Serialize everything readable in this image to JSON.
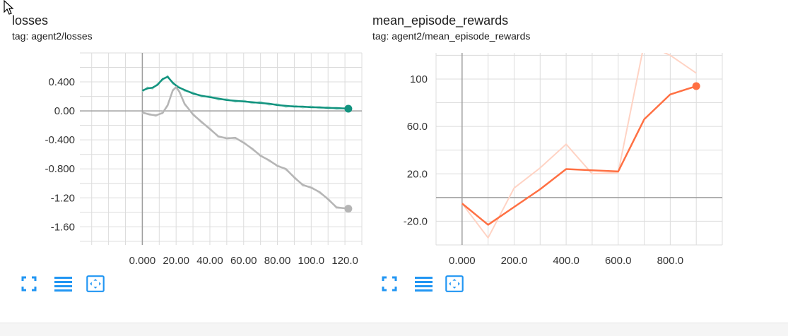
{
  "accent": "#2196f3",
  "charts": [
    {
      "title": "losses",
      "tag": "tag: agent2/losses"
    },
    {
      "title": "mean_episode_rewards",
      "tag": "tag: agent2/mean_episode_rewards"
    }
  ],
  "chart_data": [
    {
      "type": "line",
      "title": "losses",
      "subtitle": "tag: agent2/losses",
      "xlim": [
        -37,
        130
      ],
      "ylim": [
        -1.85,
        0.8
      ],
      "x_ticks": [
        0,
        20,
        40,
        60,
        80,
        100,
        120
      ],
      "x_tick_labels": [
        "0.000",
        "20.00",
        "40.00",
        "60.00",
        "80.00",
        "100.0",
        "120.0"
      ],
      "y_ticks": [
        0.4,
        0,
        -0.4,
        -0.8,
        -1.2,
        -1.6
      ],
      "y_tick_labels": [
        "0.400",
        "0.00",
        "-0.400",
        "-0.800",
        "-1.20",
        "-1.60"
      ],
      "grid": true,
      "series": [
        {
          "color": "#12937f",
          "raw_color": "#a7dccf",
          "x": [
            0,
            3,
            6,
            9,
            12,
            15,
            18,
            21,
            25,
            30,
            35,
            40,
            45,
            50,
            55,
            60,
            65,
            70,
            75,
            80,
            85,
            90,
            95,
            100,
            105,
            110,
            115,
            122
          ],
          "values": [
            0.28,
            0.31,
            0.32,
            0.36,
            0.44,
            0.47,
            0.39,
            0.33,
            0.29,
            0.24,
            0.21,
            0.19,
            0.17,
            0.15,
            0.14,
            0.13,
            0.12,
            0.11,
            0.1,
            0.08,
            0.07,
            0.06,
            0.06,
            0.05,
            0.05,
            0.04,
            0.04,
            0.03
          ]
        },
        {
          "color": "#b5b5b5",
          "raw_color": "#e2e2e2",
          "x": [
            0,
            4,
            8,
            12,
            15,
            18,
            20,
            22,
            25,
            30,
            35,
            40,
            45,
            50,
            55,
            60,
            65,
            70,
            75,
            80,
            85,
            90,
            95,
            100,
            105,
            110,
            115,
            122
          ],
          "values": [
            -0.02,
            -0.05,
            -0.06,
            -0.03,
            0.08,
            0.28,
            0.33,
            0.26,
            0.1,
            -0.05,
            -0.15,
            -0.25,
            -0.35,
            -0.38,
            -0.37,
            -0.44,
            -0.52,
            -0.62,
            -0.68,
            -0.76,
            -0.8,
            -0.92,
            -1.02,
            -1.06,
            -1.12,
            -1.22,
            -1.33,
            -1.35
          ]
        }
      ]
    },
    {
      "type": "line",
      "title": "mean_episode_rewards",
      "subtitle": "tag: agent2/mean_episode_rewards",
      "xlim": [
        -100,
        1000
      ],
      "ylim": [
        -40,
        122
      ],
      "x_ticks": [
        0,
        200,
        400,
        600,
        800
      ],
      "x_tick_labels": [
        "0.000",
        "200.0",
        "400.0",
        "600.0",
        "800.0"
      ],
      "y_ticks": [
        100,
        60,
        20,
        -20
      ],
      "y_tick_labels": [
        "100",
        "60.0",
        "20.0",
        "-20.0"
      ],
      "grid": true,
      "series": [
        {
          "color": "#ff7043",
          "x": [
            0,
            100,
            200,
            300,
            400,
            500,
            600,
            700,
            800,
            900
          ],
          "values": [
            -5,
            -23,
            -8,
            7,
            24,
            23,
            22,
            66,
            87,
            94
          ],
          "raw_color": "#ffd3c4",
          "raw_x": [
            0,
            100,
            200,
            300,
            400,
            500,
            600,
            700,
            800,
            900
          ],
          "raw_values": [
            -5,
            -34,
            8,
            25,
            45,
            20,
            21,
            130,
            120,
            105
          ]
        }
      ]
    }
  ]
}
